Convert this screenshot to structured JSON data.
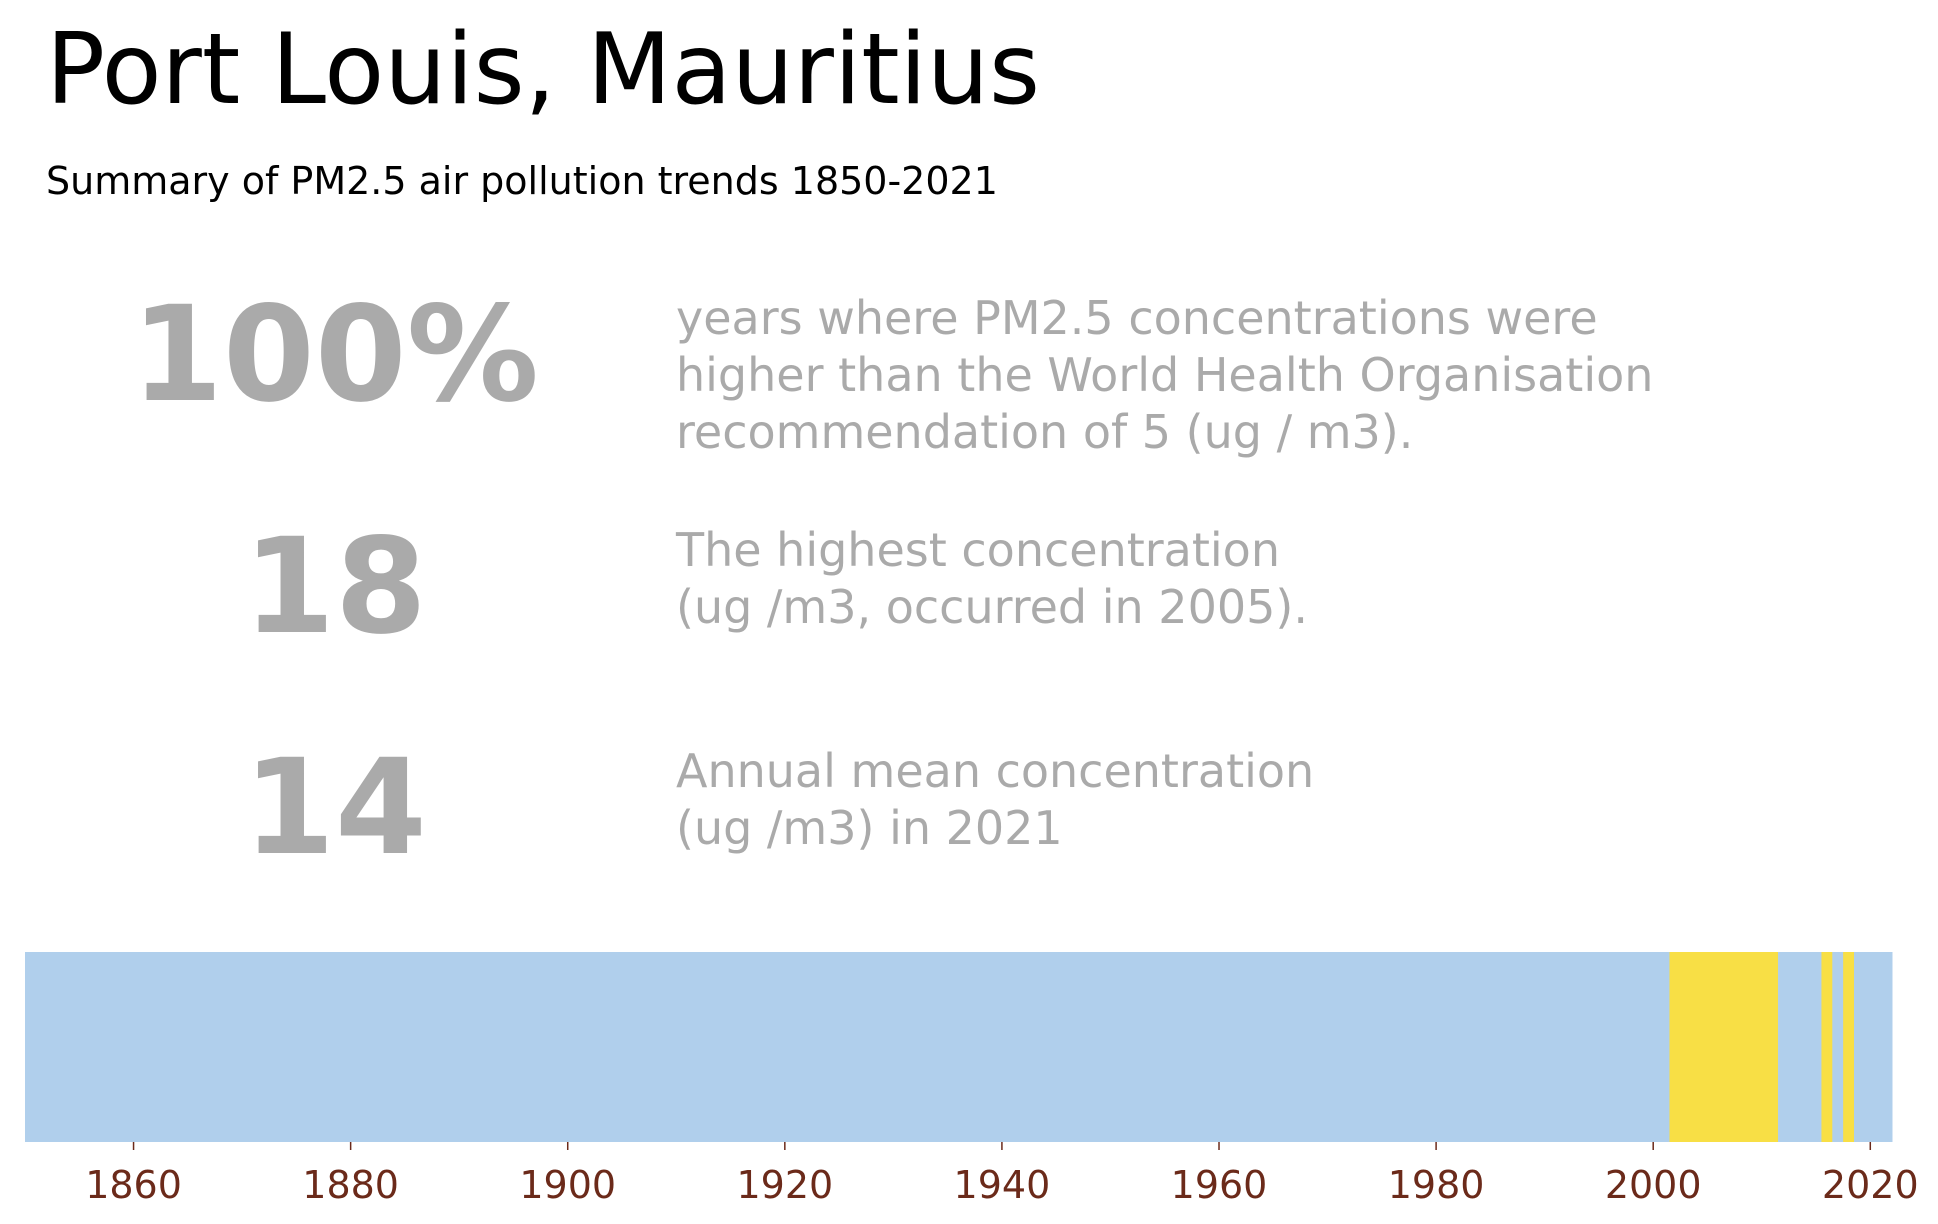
{
  "title": "Port Louis, Mauritius",
  "subtitle": "Summary of PM2.5 air pollution trends 1850-2021",
  "stats": [
    {
      "value": "100%",
      "description_lines": [
        "years where PM2.5 concentrations were",
        "higher than the World Health Organisation",
        "recommendation of 5 (ug / m3)."
      ]
    },
    {
      "value": "18",
      "description_lines": [
        "The highest concentration",
        "(ug /m3, occurred in 2005)."
      ]
    },
    {
      "value": "14",
      "description_lines": [
        "Annual mean concentration",
        "(ug /m3) in 2021"
      ]
    }
  ],
  "colors": {
    "stat_text": "#aaaaaa",
    "tick_text": "#6b2a1a",
    "low_band": "#b0cfec",
    "high_band": "#f8df45"
  },
  "chart_data": {
    "type": "heatmap",
    "x_range": [
      1850,
      2022
    ],
    "ticks": [
      1860,
      1880,
      1900,
      1920,
      1940,
      1960,
      1980,
      2000,
      2020
    ],
    "tick_labels": [
      "1860",
      "1880",
      "1900",
      "1920",
      "1940",
      "1960",
      "1980",
      "2000",
      "2020"
    ],
    "segments": [
      {
        "start": 1850,
        "end": 2001.5,
        "category": "lower"
      },
      {
        "start": 2001.5,
        "end": 2011.5,
        "category": "higher"
      },
      {
        "start": 2011.5,
        "end": 2015.5,
        "category": "lower"
      },
      {
        "start": 2015.5,
        "end": 2016.5,
        "category": "higher"
      },
      {
        "start": 2016.5,
        "end": 2017.5,
        "category": "lower"
      },
      {
        "start": 2017.5,
        "end": 2018.5,
        "category": "higher"
      },
      {
        "start": 2018.5,
        "end": 2022,
        "category": "lower"
      }
    ]
  }
}
